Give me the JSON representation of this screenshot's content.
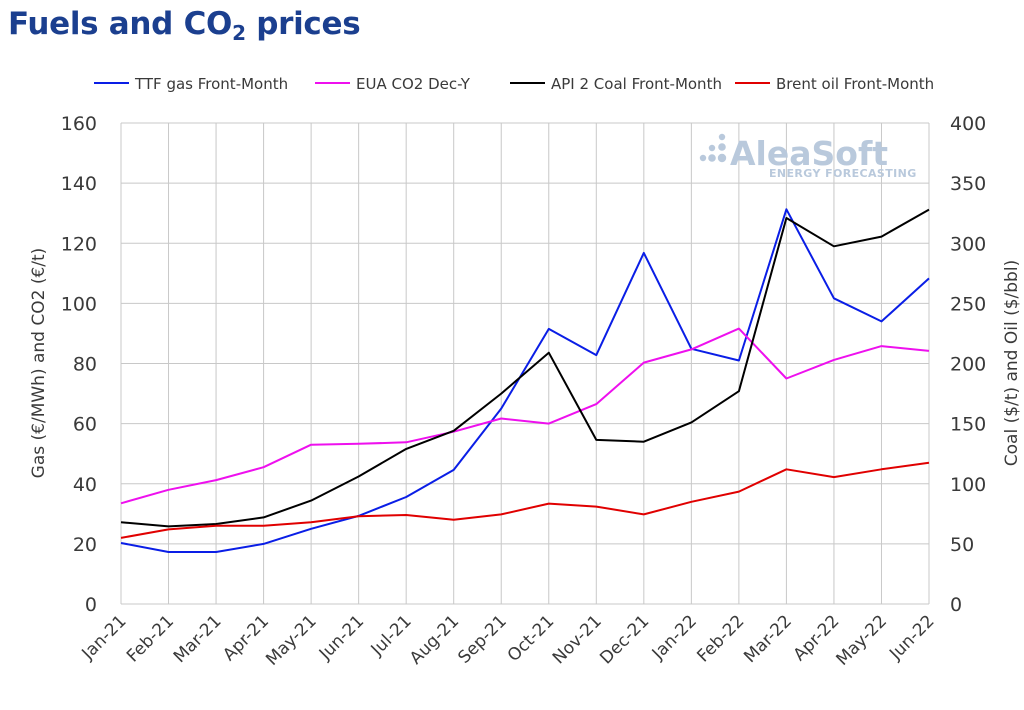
{
  "title": {
    "main": "Fuels and CO",
    "sub": "2",
    "rest": " prices"
  },
  "watermark": {
    "brand": "AleaSoft",
    "tagline": "ENERGY FORECASTING"
  },
  "colors": {
    "title": "#1b3f8f",
    "grid": "#c8c8c8",
    "text": "#3a3a3a"
  },
  "chart_data": {
    "type": "line",
    "categories": [
      "Jan-21",
      "Feb-21",
      "Mar-21",
      "Apr-21",
      "May-21",
      "Jun-21",
      "Jul-21",
      "Aug-21",
      "Sep-21",
      "Oct-21",
      "Nov-21",
      "Dec-21",
      "Jan-22",
      "Feb-22",
      "Mar-22",
      "Apr-22",
      "May-22",
      "Jun-22"
    ],
    "ylabel_left": "Gas (€/MWh) and CO2 (€/t)",
    "ylabel_right": "Coal ($/t) and Oil ($/bbl)",
    "ylim_left": [
      0,
      160
    ],
    "ylim_right": [
      0,
      400
    ],
    "yticks_left": [
      "0",
      "20",
      "40",
      "60",
      "80",
      "100",
      "120",
      "140",
      "160"
    ],
    "yticks_right": [
      "0",
      "50",
      "100",
      "150",
      "200",
      "250",
      "300",
      "350",
      "400"
    ],
    "grid": true,
    "legend_position": "top",
    "series": [
      {
        "name": "TTF gas Front-Month",
        "axis": "left",
        "color": "#0a1ee6",
        "values": [
          20.3,
          17.3,
          17.3,
          20.0,
          25.0,
          29.3,
          35.6,
          44.6,
          65.0,
          91.5,
          82.8,
          116.8,
          84.9,
          81.0,
          131.3,
          101.7,
          94.0,
          108.3
        ]
      },
      {
        "name": "EUA CO2 Dec-Y",
        "axis": "left",
        "color": "#ee10ee",
        "values": [
          33.5,
          38.0,
          41.2,
          45.5,
          53.0,
          53.3,
          53.8,
          57.3,
          61.7,
          60.0,
          66.5,
          80.3,
          84.7,
          91.6,
          75.0,
          81.2,
          85.8,
          84.2
        ]
      },
      {
        "name": "API 2 Coal Front-Month",
        "axis": "right",
        "color": "#000000",
        "values": [
          68.0,
          64.5,
          66.5,
          72.0,
          86.0,
          106.0,
          129.0,
          144.0,
          175.0,
          209.0,
          136.5,
          135.0,
          151.0,
          177.0,
          321.0,
          297.5,
          305.5,
          328.0
        ]
      },
      {
        "name": "Brent oil Front-Month",
        "axis": "right",
        "color": "#e00000",
        "values": [
          55.0,
          62.0,
          65.0,
          65.0,
          68.0,
          73.0,
          74.0,
          70.0,
          74.5,
          83.5,
          81.0,
          74.5,
          85.0,
          93.5,
          112.0,
          105.5,
          112.0,
          117.5
        ]
      }
    ]
  }
}
